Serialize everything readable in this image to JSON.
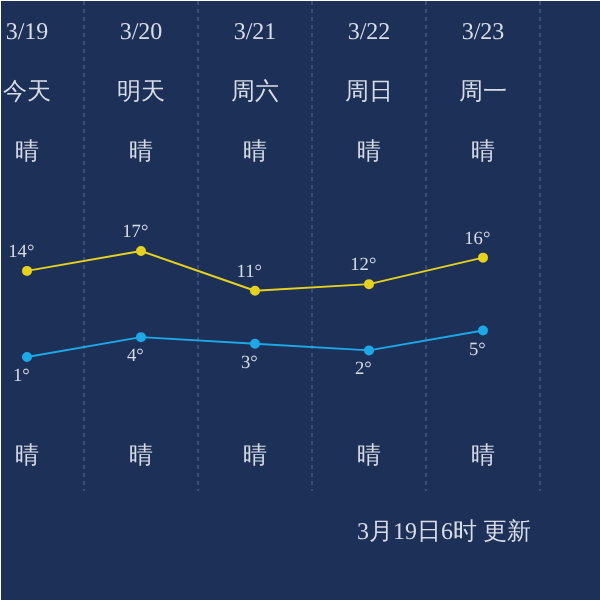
{
  "chart_data": {
    "type": "line",
    "categories": [
      "3/19",
      "3/20",
      "3/21",
      "3/22",
      "3/23"
    ],
    "series": [
      {
        "color": "#e6d21e",
        "values": [
          14,
          17,
          11,
          12,
          16
        ],
        "value_labels": [
          "14°",
          "17°",
          "11°",
          "12°",
          "16°"
        ]
      },
      {
        "color": "#1ea8e6",
        "values": [
          1,
          4,
          3,
          2,
          5
        ],
        "value_labels": [
          "1°",
          "4°",
          "3°",
          "2°",
          "5°"
        ]
      }
    ],
    "marker": "circle",
    "grid": "x",
    "annotations": [
      "今天",
      "明天",
      "周六",
      "周日",
      "周一",
      "晴",
      "晴",
      "晴",
      "晴",
      "晴",
      "晴",
      "晴",
      "晴",
      "晴",
      "晴",
      "3月19日6时 更新"
    ]
  }
}
